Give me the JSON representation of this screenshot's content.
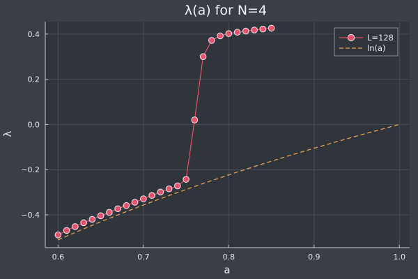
{
  "chart_data": {
    "type": "line",
    "title": "λ(a) for N=4",
    "xlabel": "a",
    "ylabel": "λ",
    "xlim": [
      0.585,
      1.012
    ],
    "ylim": [
      -0.545,
      0.455
    ],
    "xticks": [
      0.6,
      0.7,
      0.8,
      0.9,
      1.0
    ],
    "xtick_labels": [
      "0.6",
      "0.7",
      "0.8",
      "0.9",
      "1.0"
    ],
    "yticks": [
      -0.4,
      -0.2,
      0.0,
      0.2,
      0.4
    ],
    "ytick_labels": [
      "−0.4",
      "−0.2",
      "0.0",
      "0.2",
      "0.4"
    ],
    "grid": true,
    "legend_position": "top-right",
    "series": [
      {
        "name": "L=128",
        "color": "#e6516b",
        "style": "line-with-markers",
        "x": [
          0.6,
          0.61,
          0.62,
          0.63,
          0.64,
          0.65,
          0.66,
          0.67,
          0.68,
          0.69,
          0.7,
          0.71,
          0.72,
          0.73,
          0.74,
          0.75,
          0.76,
          0.77,
          0.78,
          0.79,
          0.8,
          0.81,
          0.82,
          0.83,
          0.84,
          0.85
        ],
        "y": [
          -0.489,
          -0.469,
          -0.452,
          -0.435,
          -0.42,
          -0.404,
          -0.389,
          -0.373,
          -0.359,
          -0.344,
          -0.329,
          -0.314,
          -0.299,
          -0.285,
          -0.272,
          -0.243,
          0.02,
          0.3,
          0.372,
          0.392,
          0.402,
          0.408,
          0.413,
          0.418,
          0.422,
          0.426
        ]
      },
      {
        "name": "ln(a)",
        "color": "#e6a15a",
        "style": "dashed",
        "function": "ln",
        "x_range": [
          0.6,
          1.0
        ]
      }
    ]
  }
}
